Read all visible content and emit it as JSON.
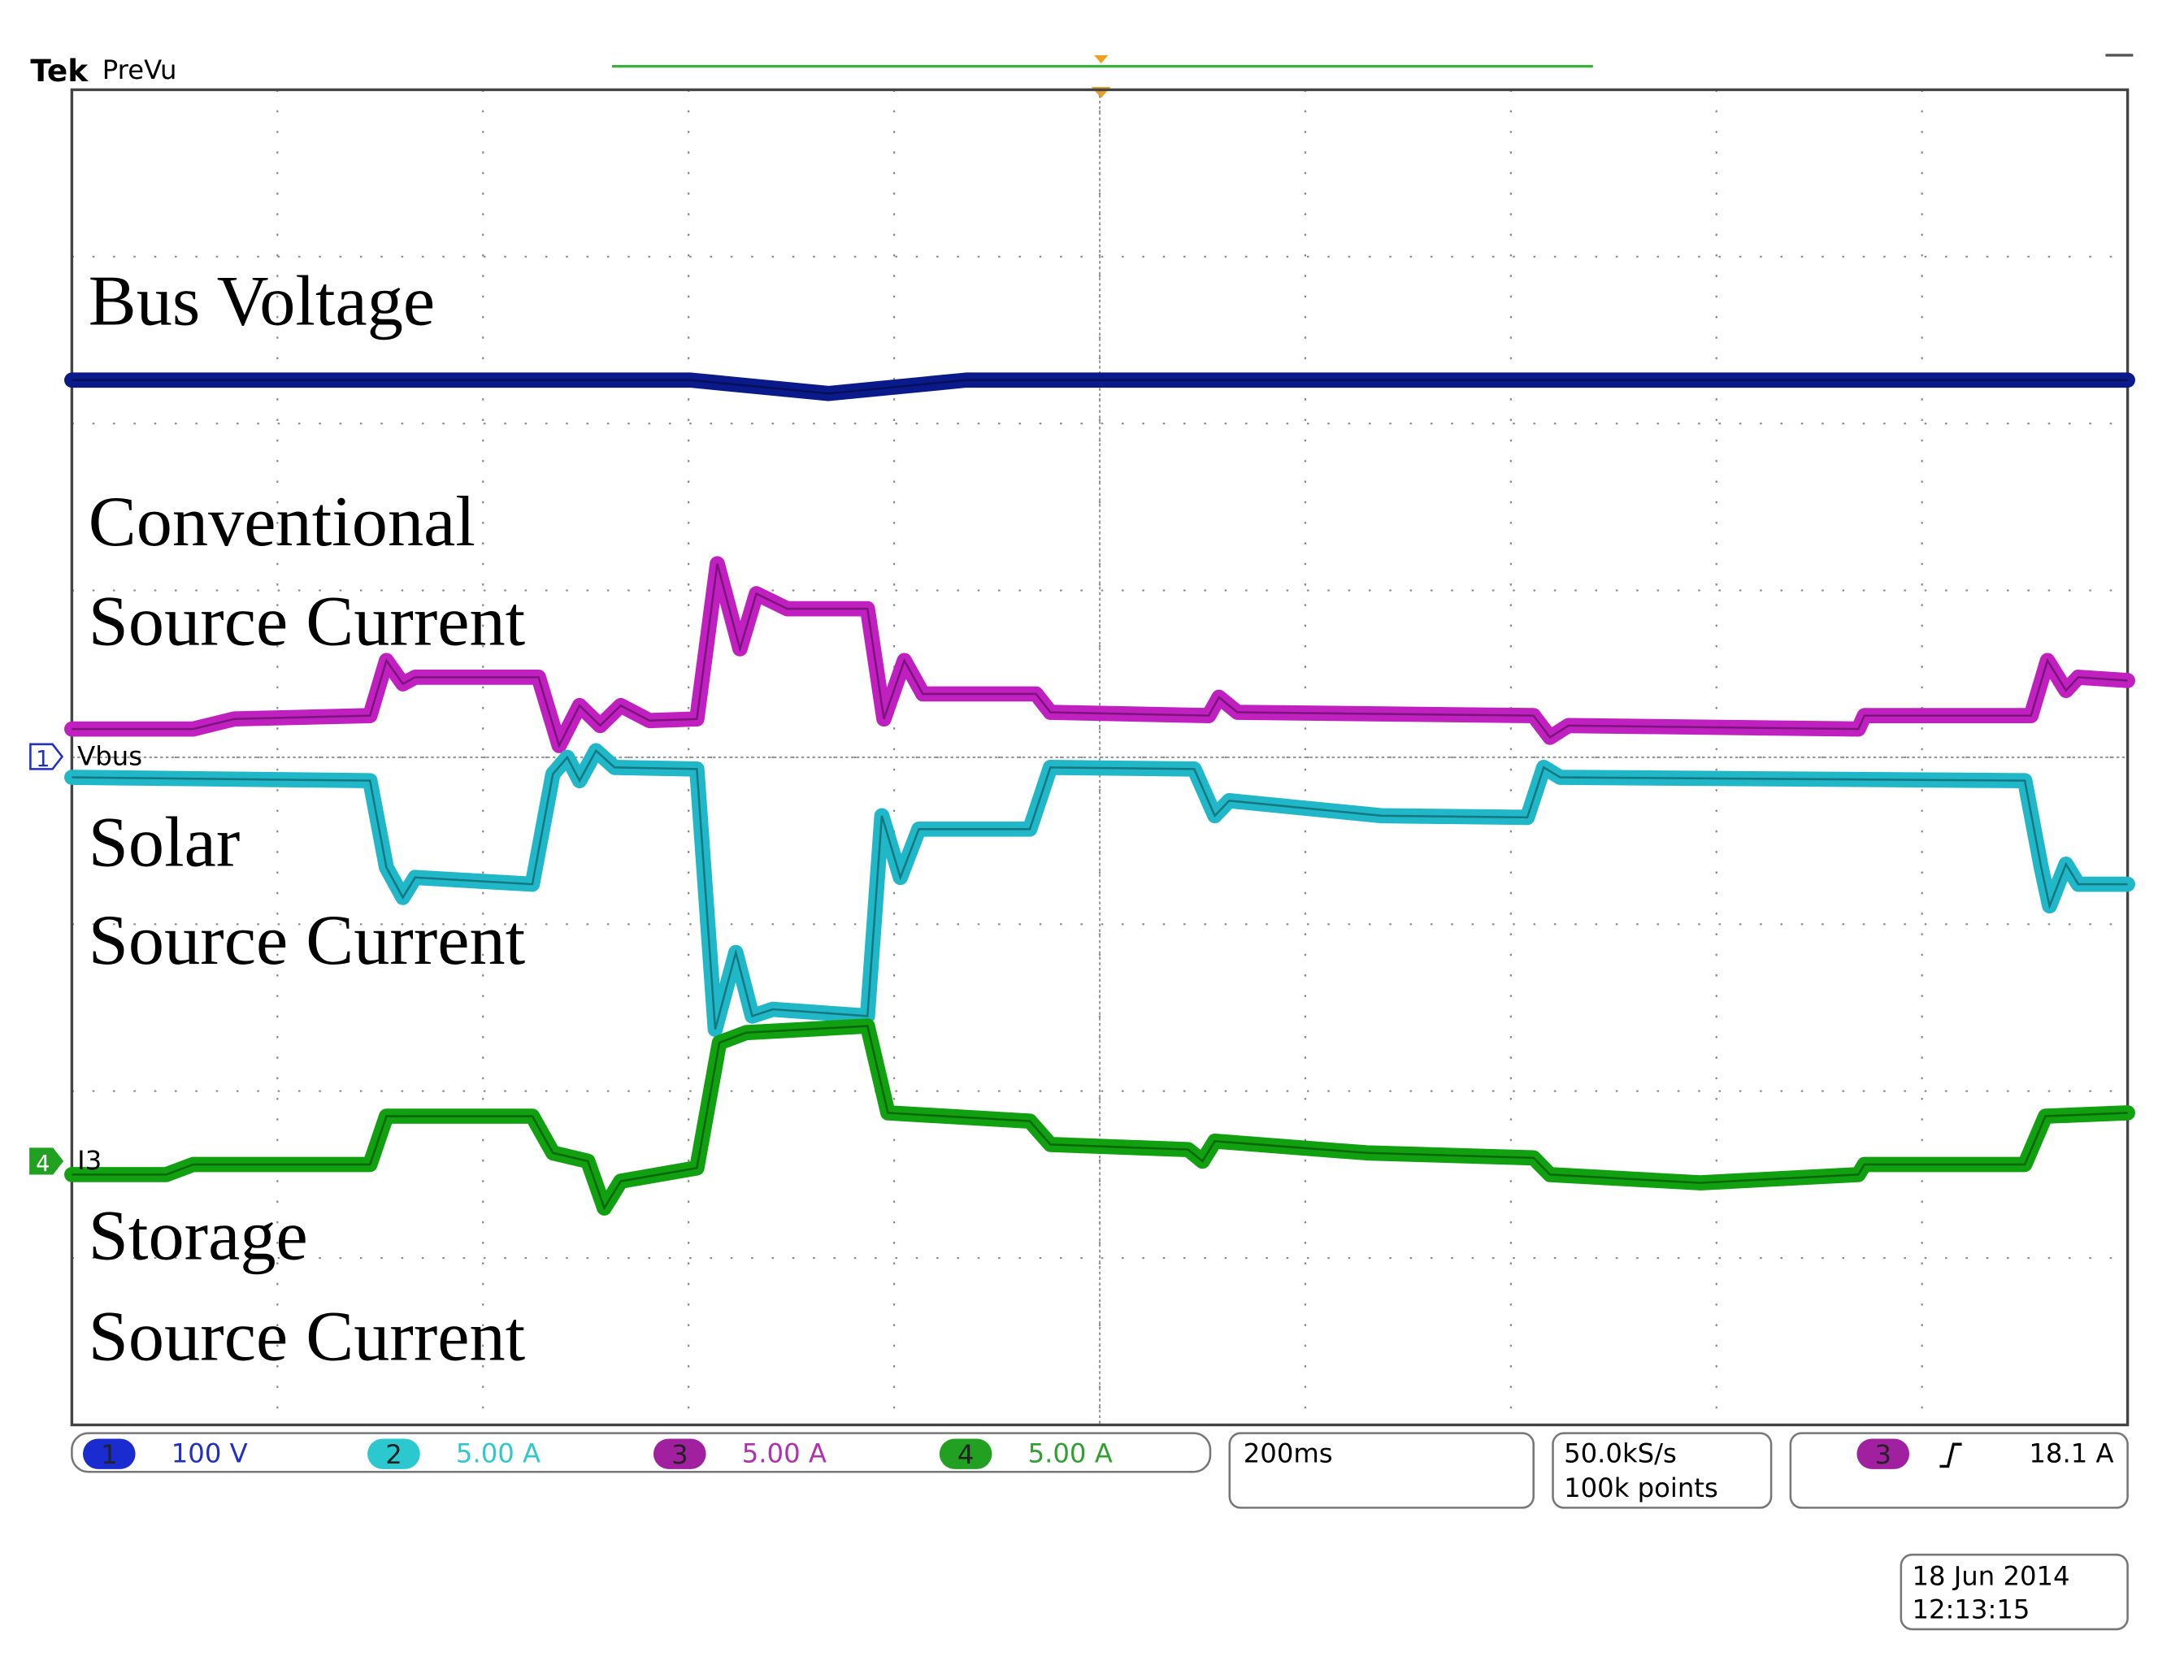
{
  "header": {
    "brand": "Tek",
    "mode": "PreVu"
  },
  "screen": {
    "divisions": [
      10,
      8
    ],
    "annotations": [
      "Bus Voltage",
      "Conventional",
      "Source Current",
      "Solar",
      "Source Current",
      "Storage",
      "Source Current"
    ],
    "markers": [
      {
        "channel": "1",
        "label": "Vbus"
      },
      {
        "channel": "4",
        "label": "I3"
      }
    ],
    "traces": [
      {
        "color": "#0a1a8a",
        "x": [
          0,
          3.01,
          3.68,
          4.35,
          10
        ],
        "y": [
          2.26,
          2.26,
          2.18,
          2.26,
          2.26
        ]
      },
      {
        "color": "#c020c0",
        "x": [
          0,
          0.59,
          0.79,
          1.45,
          1.53,
          1.61,
          1.67,
          2.27,
          2.37,
          2.47,
          2.57,
          2.67,
          2.81,
          3.04,
          3.14,
          3.25,
          3.33,
          3.48,
          3.87,
          3.95,
          4.05,
          4.14,
          4.69,
          4.76,
          5.53,
          5.58,
          5.67,
          7.11,
          7.19,
          7.28,
          8.69,
          8.72,
          9.53,
          9.61,
          9.7,
          9.76,
          10
        ],
        "y": [
          0.17,
          0.17,
          0.23,
          0.25,
          0.58,
          0.44,
          0.48,
          0.48,
          0.07,
          0.31,
          0.19,
          0.31,
          0.22,
          0.23,
          1.16,
          0.65,
          0.98,
          0.89,
          0.89,
          0.23,
          0.58,
          0.38,
          0.38,
          0.27,
          0.25,
          0.36,
          0.27,
          0.25,
          0.12,
          0.19,
          0.17,
          0.25,
          0.25,
          0.58,
          0.4,
          0.48,
          0.46
        ]
      },
      {
        "color": "#20b8c8",
        "x": [
          0,
          1.45,
          1.53,
          1.61,
          1.67,
          2.24,
          2.34,
          2.41,
          2.47,
          2.55,
          2.64,
          3.04,
          3.13,
          3.23,
          3.31,
          3.41,
          3.87,
          3.94,
          4.03,
          4.12,
          4.66,
          4.76,
          5.46,
          5.56,
          5.63,
          6.37,
          7.08,
          7.16,
          7.24,
          9.5,
          9.58,
          9.62,
          9.7,
          9.76,
          10
        ],
        "y": [
          -0.12,
          -0.14,
          -0.66,
          -0.84,
          -0.72,
          -0.76,
          -0.1,
          0,
          -0.14,
          0.04,
          -0.06,
          -0.07,
          -1.63,
          -1.17,
          -1.55,
          -1.51,
          -1.55,
          -0.35,
          -0.72,
          -0.43,
          -0.43,
          -0.06,
          -0.07,
          -0.35,
          -0.26,
          -0.35,
          -0.36,
          -0.06,
          -0.12,
          -0.14,
          -0.66,
          -0.89,
          -0.64,
          -0.76,
          -0.76
        ]
      },
      {
        "color": "#10a010",
        "x": [
          0,
          0.46,
          0.59,
          1.45,
          1.53,
          2.24,
          2.34,
          2.51,
          2.59,
          2.67,
          3.04,
          3.15,
          3.28,
          3.87,
          3.97,
          4.66,
          4.76,
          5.43,
          5.5,
          5.56,
          6.3,
          7.11,
          7.19,
          7.92,
          8.69,
          8.72,
          9.5,
          9.6,
          10
        ],
        "y": [
          -2.5,
          -2.5,
          -2.44,
          -2.44,
          -2.15,
          -2.15,
          -2.37,
          -2.42,
          -2.7,
          -2.54,
          -2.46,
          -1.71,
          -1.65,
          -1.61,
          -2.13,
          -2.18,
          -2.32,
          -2.35,
          -2.42,
          -2.3,
          -2.37,
          -2.4,
          -2.5,
          -2.55,
          -2.5,
          -2.44,
          -2.44,
          -2.15,
          -2.13
        ]
      }
    ]
  },
  "readouts": {
    "channels": [
      {
        "number": "1",
        "scale": "100 V",
        "pill": "#1a2bd0",
        "text": "#2030c0"
      },
      {
        "number": "2",
        "scale": "5.00 A",
        "pill": "#2cc8d0",
        "text": "#30c8d0"
      },
      {
        "number": "3",
        "scale": "5.00 A",
        "pill": "#a020a0",
        "text": "#b030b0"
      },
      {
        "number": "4",
        "scale": "5.00 A",
        "pill": "#22a022",
        "text": "#30a030"
      }
    ],
    "timebase": "200ms",
    "sample_rate": "50.0kS/s",
    "record_length": "100k points",
    "trigger": {
      "channel": "3",
      "level": "18.1 A",
      "color": "#a020a0"
    }
  },
  "date": "18 Jun 2014",
  "time": "12:13:15"
}
